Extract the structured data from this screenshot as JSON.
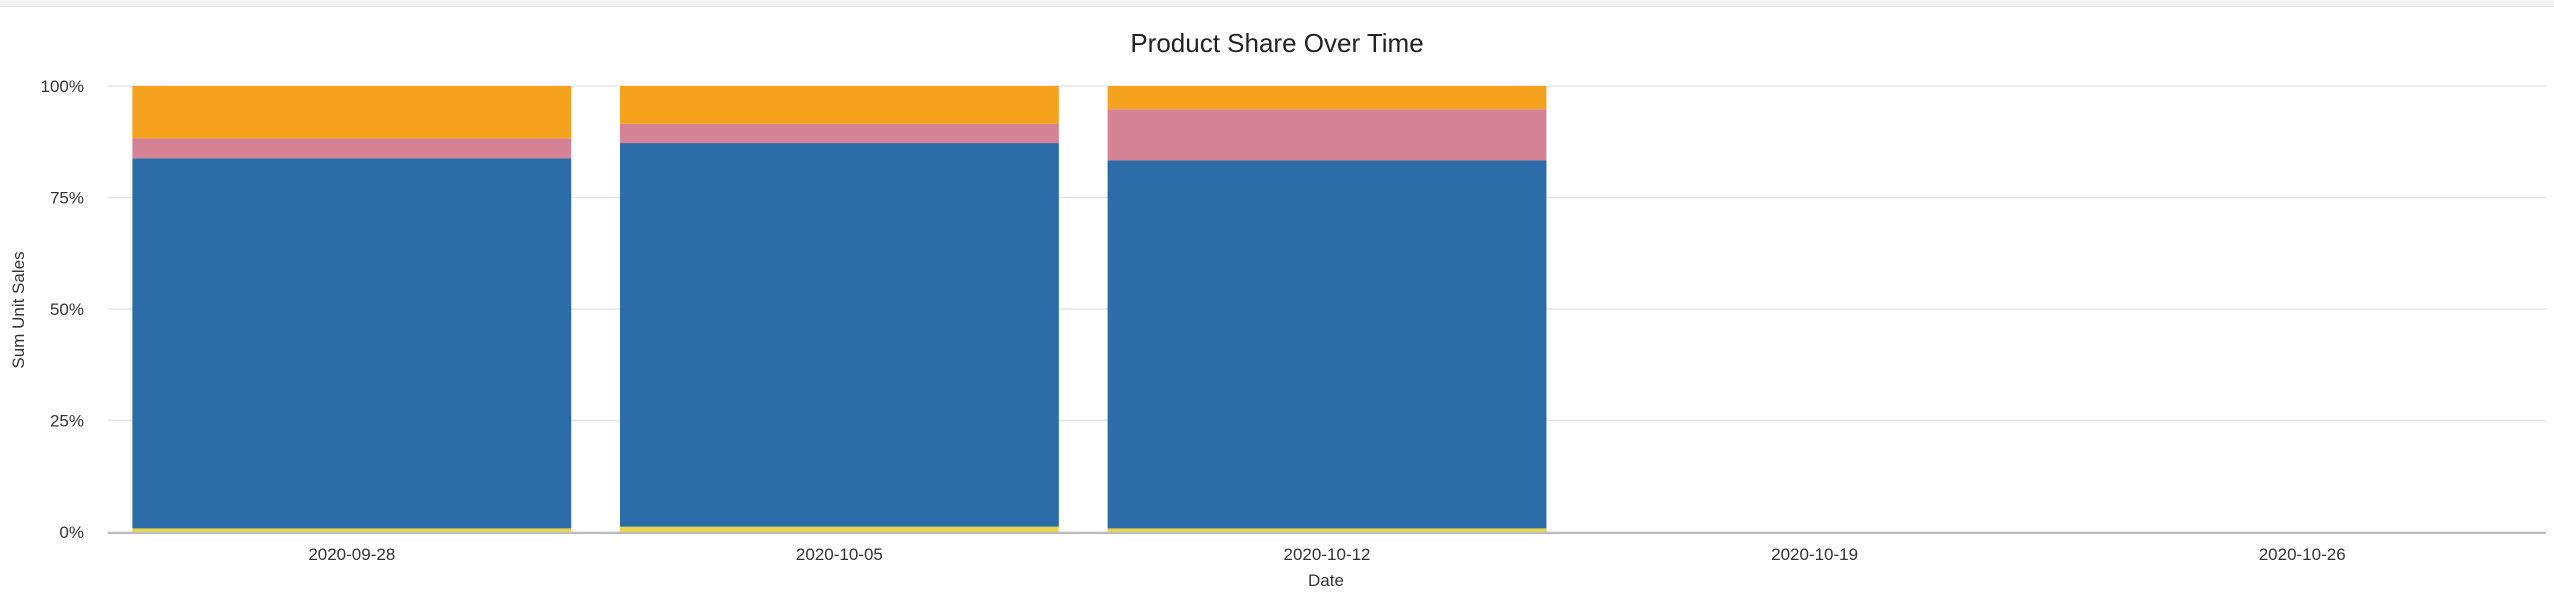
{
  "chart_data": {
    "type": "bar",
    "stacked": true,
    "normalized": true,
    "title": "Product Share Over Time",
    "xlabel": "Date",
    "ylabel": "Sum Unit Sales",
    "ylim": [
      0,
      100
    ],
    "y_ticks": [
      "0%",
      "25%",
      "50%",
      "75%",
      "100%"
    ],
    "y_tick_values": [
      0,
      25,
      50,
      75,
      100
    ],
    "categories": [
      "2020-09-28",
      "2020-10-05",
      "2020-10-12",
      "2020-10-19",
      "2020-10-26"
    ],
    "grid": true,
    "legend": "none",
    "series": [
      {
        "color": "#E8D44D",
        "values": [
          0.8,
          1.2,
          0.8,
          null,
          null
        ]
      },
      {
        "color": "#2B6CA8",
        "values": [
          83.0,
          86.0,
          82.5,
          null,
          null
        ]
      },
      {
        "color": "#D48496",
        "values": [
          4.5,
          4.3,
          11.5,
          null,
          null
        ]
      },
      {
        "color": "#F5A31F",
        "values": [
          11.7,
          8.5,
          5.2,
          null,
          null
        ]
      }
    ]
  }
}
